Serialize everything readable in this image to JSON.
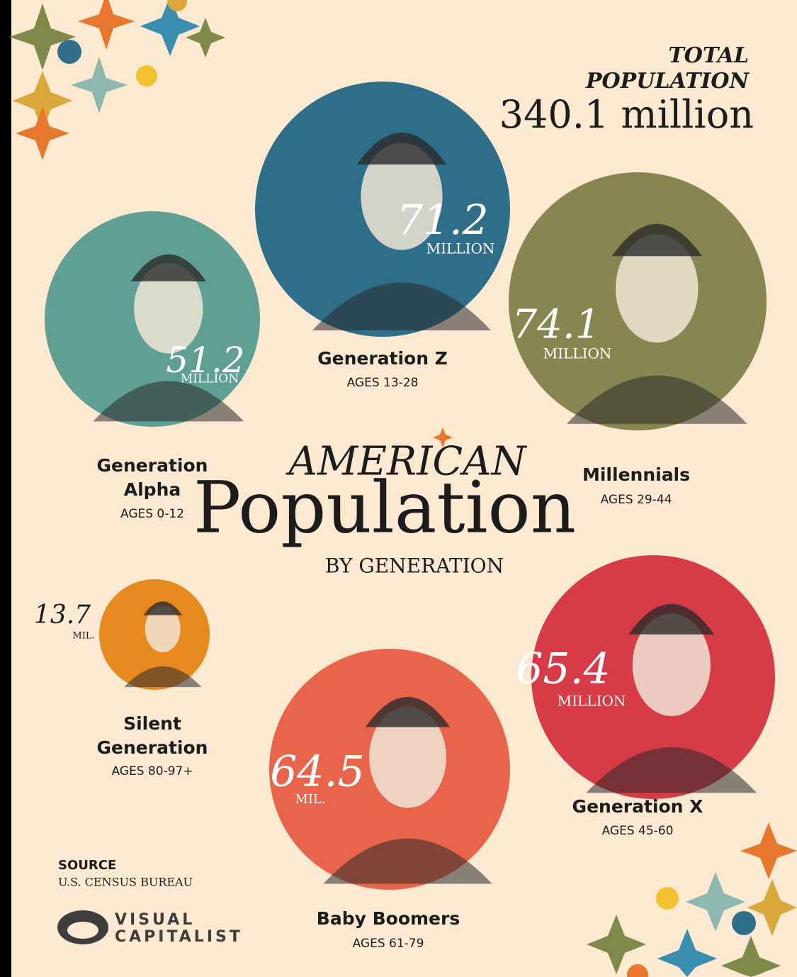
{
  "header": {
    "total_lines": [
      "TOTAL",
      "POPULATION"
    ],
    "total_value": "340.1 million"
  },
  "title": {
    "kicker": "AMERICAN",
    "main": "Population",
    "subtitle": "BY GENERATION"
  },
  "generations": [
    {
      "name_lines": [
        "Generation",
        "Alpha"
      ],
      "ages": "AGES 0-12",
      "value": "51.2",
      "unit": "MILLION"
    },
    {
      "name_lines": [
        "Generation Z"
      ],
      "ages": "AGES 13-28",
      "value": "71.2",
      "unit": "MILLION"
    },
    {
      "name_lines": [
        "Millennials"
      ],
      "ages": "AGES 29-44",
      "value": "74.1",
      "unit": "MILLION"
    },
    {
      "name_lines": [
        "Silent",
        "Generation"
      ],
      "ages": "AGES 80-97+",
      "value": "13.7",
      "unit": "MIL."
    },
    {
      "name_lines": [
        "Baby Boomers"
      ],
      "ages": "AGES 61-79",
      "value": "64.5",
      "unit": "MIL."
    },
    {
      "name_lines": [
        "Generation X"
      ],
      "ages": "AGES 45-60",
      "value": "65.4",
      "unit": "MILLION"
    }
  ],
  "source": {
    "label": "SOURCE",
    "text": "U.S. CENSUS BUREAU"
  },
  "logo": {
    "lines": [
      "VISUAL",
      "CAPITALIST"
    ]
  }
}
